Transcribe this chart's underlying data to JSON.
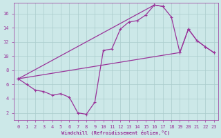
{
  "bg_color": "#cce8e8",
  "line_color": "#993399",
  "grid_color": "#aacccc",
  "xlabel": "Windchill (Refroidissement éolien,°C)",
  "xlabel_color": "#993399",
  "tick_color": "#993399",
  "xlim": [
    -0.5,
    23.5
  ],
  "ylim": [
    1.0,
    17.5
  ],
  "xticks": [
    0,
    1,
    2,
    3,
    4,
    5,
    6,
    7,
    8,
    9,
    10,
    11,
    12,
    13,
    14,
    15,
    16,
    17,
    18,
    19,
    20,
    21,
    22,
    23
  ],
  "yticks": [
    2,
    4,
    6,
    8,
    10,
    12,
    14,
    16
  ],
  "line1_x": [
    0,
    1,
    2,
    3,
    4,
    5,
    6,
    7,
    8,
    9,
    10,
    11,
    12,
    13,
    14,
    15,
    16,
    17
  ],
  "line1_y": [
    6.8,
    6.0,
    5.2,
    5.0,
    4.5,
    4.7,
    4.2,
    2.0,
    1.8,
    3.5,
    10.8,
    11.0,
    13.8,
    14.8,
    15.0,
    15.8,
    17.2,
    17.0
  ],
  "line2_x": [
    0,
    16,
    17,
    18,
    19,
    20,
    21,
    22,
    23
  ],
  "line2_y": [
    6.8,
    17.2,
    17.0,
    15.5,
    10.5,
    13.8,
    12.2,
    11.3,
    10.5
  ],
  "line3_x": [
    0,
    19,
    20,
    21,
    22,
    23
  ],
  "line3_y": [
    6.8,
    10.5,
    13.8,
    12.2,
    11.3,
    10.5
  ]
}
